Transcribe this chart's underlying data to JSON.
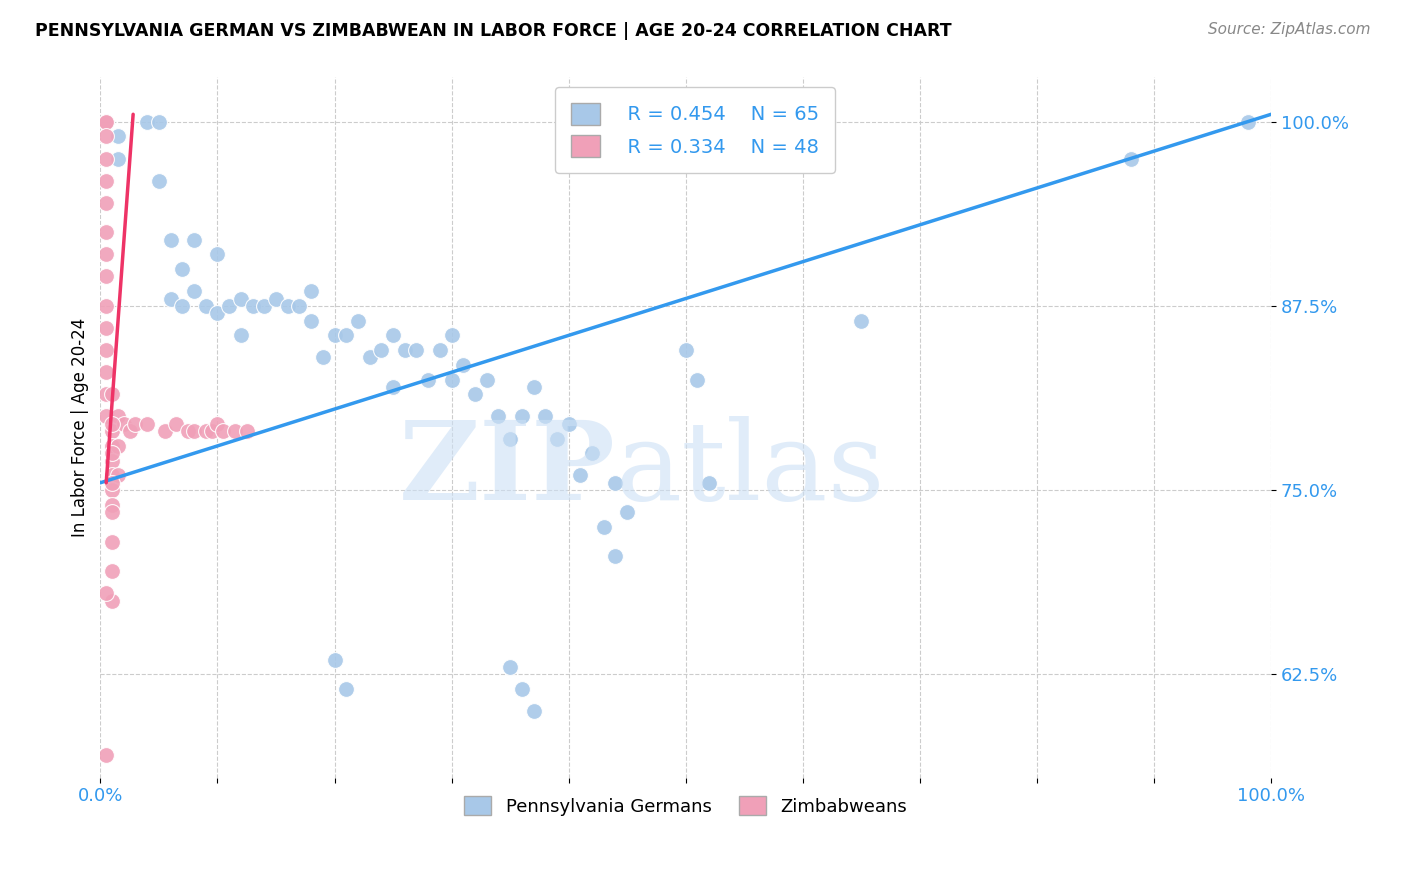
{
  "title": "PENNSYLVANIA GERMAN VS ZIMBABWEAN IN LABOR FORCE | AGE 20-24 CORRELATION CHART",
  "source": "Source: ZipAtlas.com",
  "ylabel": "In Labor Force | Age 20-24",
  "xlim": [
    0.0,
    1.0
  ],
  "ylim": [
    0.555,
    1.03
  ],
  "yticks": [
    0.625,
    0.75,
    0.875,
    1.0
  ],
  "ytick_labels": [
    "62.5%",
    "75.0%",
    "87.5%",
    "100.0%"
  ],
  "xticks": [
    0.0,
    0.1,
    0.2,
    0.3,
    0.4,
    0.5,
    0.6,
    0.7,
    0.8,
    0.9,
    1.0
  ],
  "xtick_labels": [
    "0.0%",
    "",
    "",
    "",
    "",
    "",
    "",
    "",
    "",
    "",
    "100.0%"
  ],
  "blue_color": "#a8c8e8",
  "pink_color": "#f0a0b8",
  "blue_line_color": "#3399ee",
  "pink_line_color": "#ee3366",
  "tick_color": "#3399ee",
  "legend_R_blue": "R = 0.454",
  "legend_N_blue": "N = 65",
  "legend_R_pink": "R = 0.334",
  "legend_N_pink": "N = 48",
  "blue_line_x0": 0.0,
  "blue_line_y0": 0.755,
  "blue_line_x1": 1.0,
  "blue_line_y1": 1.005,
  "pink_line_x0": 0.005,
  "pink_line_y0": 0.755,
  "pink_line_x1": 0.028,
  "pink_line_y1": 1.005,
  "blue_x": [
    0.015,
    0.015,
    0.04,
    0.05,
    0.05,
    0.06,
    0.06,
    0.07,
    0.07,
    0.08,
    0.08,
    0.09,
    0.1,
    0.1,
    0.11,
    0.12,
    0.12,
    0.13,
    0.14,
    0.15,
    0.16,
    0.17,
    0.18,
    0.18,
    0.19,
    0.2,
    0.21,
    0.22,
    0.23,
    0.24,
    0.25,
    0.25,
    0.26,
    0.27,
    0.28,
    0.29,
    0.3,
    0.3,
    0.31,
    0.32,
    0.33,
    0.34,
    0.35,
    0.36,
    0.37,
    0.38,
    0.39,
    0.4,
    0.41,
    0.42,
    0.43,
    0.44,
    0.44,
    0.45,
    0.5,
    0.51,
    0.52,
    0.65,
    0.88,
    0.98,
    0.2,
    0.21,
    0.35,
    0.36,
    0.37
  ],
  "blue_y": [
    0.975,
    0.99,
    1.0,
    1.0,
    0.96,
    0.88,
    0.92,
    0.875,
    0.9,
    0.885,
    0.92,
    0.875,
    0.87,
    0.91,
    0.875,
    0.88,
    0.855,
    0.875,
    0.875,
    0.88,
    0.875,
    0.875,
    0.865,
    0.885,
    0.84,
    0.855,
    0.855,
    0.865,
    0.84,
    0.845,
    0.855,
    0.82,
    0.845,
    0.845,
    0.825,
    0.845,
    0.855,
    0.825,
    0.835,
    0.815,
    0.825,
    0.8,
    0.785,
    0.8,
    0.82,
    0.8,
    0.785,
    0.795,
    0.76,
    0.775,
    0.725,
    0.705,
    0.755,
    0.735,
    0.845,
    0.825,
    0.755,
    0.865,
    0.975,
    1.0,
    0.635,
    0.615,
    0.63,
    0.615,
    0.6
  ],
  "pink_x": [
    0.005,
    0.005,
    0.005,
    0.005,
    0.005,
    0.005,
    0.005,
    0.005,
    0.005,
    0.005,
    0.005,
    0.005,
    0.005,
    0.005,
    0.005,
    0.01,
    0.01,
    0.01,
    0.01,
    0.01,
    0.01,
    0.015,
    0.015,
    0.015,
    0.02,
    0.025,
    0.03,
    0.04,
    0.055,
    0.065,
    0.075,
    0.08,
    0.09,
    0.095,
    0.1,
    0.105,
    0.115,
    0.125,
    0.01,
    0.01,
    0.01,
    0.01,
    0.01,
    0.01,
    0.01,
    0.01,
    0.005,
    0.005
  ],
  "pink_y": [
    1.0,
    1.0,
    0.99,
    0.975,
    0.96,
    0.945,
    0.925,
    0.91,
    0.895,
    0.875,
    0.86,
    0.845,
    0.83,
    0.815,
    0.8,
    0.79,
    0.78,
    0.77,
    0.76,
    0.75,
    0.74,
    0.8,
    0.78,
    0.76,
    0.795,
    0.79,
    0.795,
    0.795,
    0.79,
    0.795,
    0.79,
    0.79,
    0.79,
    0.79,
    0.795,
    0.79,
    0.79,
    0.79,
    0.815,
    0.795,
    0.775,
    0.755,
    0.735,
    0.715,
    0.695,
    0.675,
    0.68,
    0.57
  ]
}
